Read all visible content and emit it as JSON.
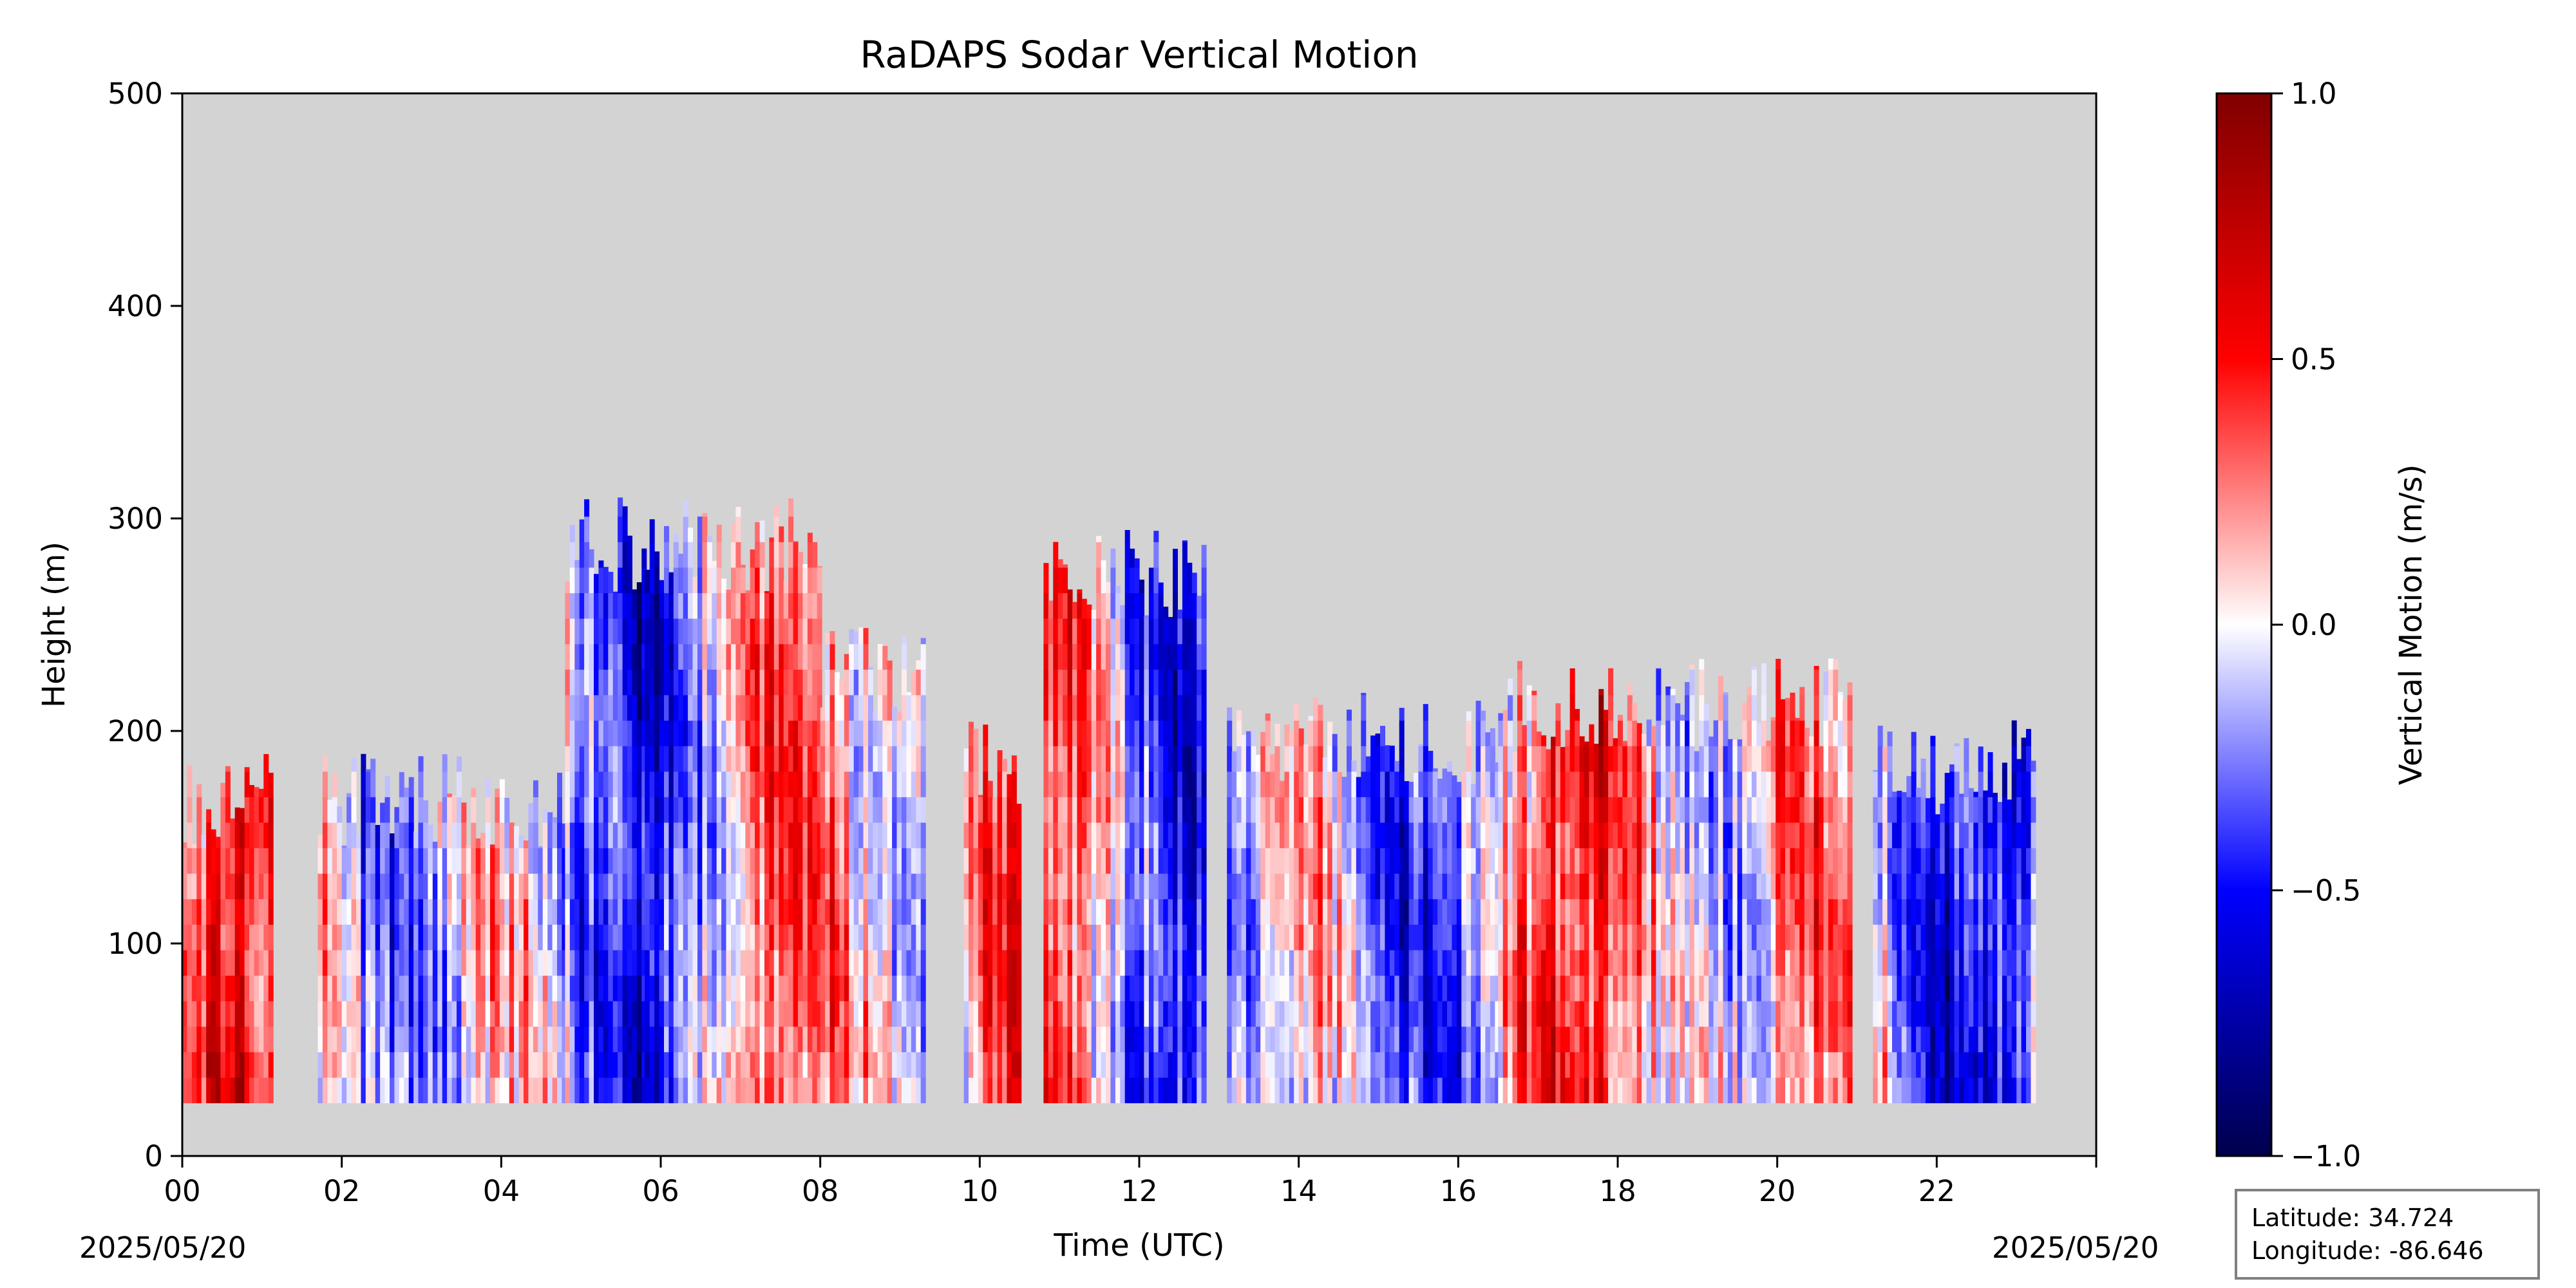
{
  "chart_data": {
    "type": "heatmap",
    "title": "RaDAPS Sodar Vertical Motion",
    "xlabel": "Time (UTC)",
    "ylabel": "Height (m)",
    "xlim": [
      0,
      24
    ],
    "ylim": [
      0,
      500
    ],
    "x_ticks": [
      "00",
      "02",
      "04",
      "06",
      "08",
      "10",
      "12",
      "14",
      "16",
      "18",
      "20",
      "22"
    ],
    "y_ticks": [
      0,
      100,
      200,
      300,
      400,
      500
    ],
    "date_start": "2025/05/20",
    "date_end": "2025/05/20",
    "colorbar": {
      "label": "Vertical Motion (m/s)",
      "range": [
        -1.0,
        1.0
      ],
      "ticks": [
        "−1.0",
        "−0.5",
        "0.0",
        "0.5",
        "1.0"
      ],
      "cmap": "seismic"
    },
    "missing_color": "#d3d3d3",
    "data_bottom_height_m": 25,
    "blocks": [
      {
        "start": 0.0,
        "end": 1.1,
        "top": 190
      },
      {
        "start": 1.7,
        "end": 4.8,
        "top": 190
      },
      {
        "start": 4.8,
        "end": 5.8,
        "top": 310
      },
      {
        "start": 5.8,
        "end": 8.0,
        "top": 310
      },
      {
        "start": 8.0,
        "end": 9.3,
        "top": 250
      },
      {
        "start": 9.8,
        "end": 10.5,
        "top": 205
      },
      {
        "start": 10.8,
        "end": 12.8,
        "top": 295
      },
      {
        "start": 13.1,
        "end": 16.5,
        "top": 220
      },
      {
        "start": 16.5,
        "end": 20.9,
        "top": 235
      },
      {
        "start": 21.2,
        "end": 23.2,
        "top": 205
      }
    ],
    "info": {
      "latitude": "Latitude: 34.724",
      "longitude": "Longitude: -86.646"
    }
  }
}
